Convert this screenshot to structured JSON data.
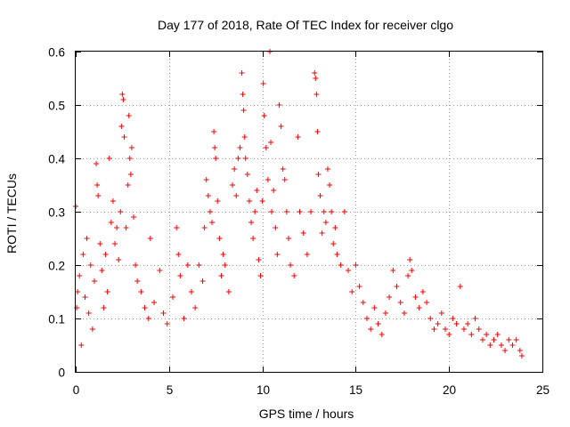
{
  "chart_data": {
    "type": "scatter",
    "title": "Day 177 of 2018, Rate Of TEC Index for receiver clgo",
    "xlabel": "GPS time / hours",
    "ylabel": "ROTI / TECUs",
    "xlim": [
      0,
      25
    ],
    "ylim": [
      0,
      0.6
    ],
    "xticks": [
      0,
      5,
      10,
      15,
      20,
      25
    ],
    "yticks": [
      0,
      0.1,
      0.2,
      0.3,
      0.4,
      0.5,
      0.6
    ],
    "xtick_labels": [
      "0",
      "5",
      "10",
      "15",
      "20",
      "25"
    ],
    "ytick_labels": [
      "0",
      "0.1",
      "0.2",
      "0.3",
      "0.4",
      "0.5",
      "0.6"
    ],
    "grid": true,
    "marker": "plus",
    "marker_color": "#ff0000",
    "series": [
      {
        "name": "ROTI",
        "notes": "dense point cloud, ~1 point per 5 min per satellite; values sampled from the visual envelope",
        "points": [
          [
            0.0,
            0.31
          ],
          [
            0.05,
            0.12
          ],
          [
            0.1,
            0.15
          ],
          [
            0.2,
            0.18
          ],
          [
            0.3,
            0.05
          ],
          [
            0.4,
            0.22
          ],
          [
            0.5,
            0.14
          ],
          [
            0.6,
            0.25
          ],
          [
            0.7,
            0.11
          ],
          [
            0.8,
            0.2
          ],
          [
            0.9,
            0.08
          ],
          [
            1.0,
            0.17
          ],
          [
            1.1,
            0.39
          ],
          [
            1.15,
            0.35
          ],
          [
            1.2,
            0.33
          ],
          [
            1.3,
            0.24
          ],
          [
            1.4,
            0.19
          ],
          [
            1.5,
            0.12
          ],
          [
            1.6,
            0.22
          ],
          [
            1.7,
            0.15
          ],
          [
            1.8,
            0.4
          ],
          [
            1.9,
            0.28
          ],
          [
            2.0,
            0.32
          ],
          [
            2.1,
            0.24
          ],
          [
            2.2,
            0.27
          ],
          [
            2.3,
            0.21
          ],
          [
            2.4,
            0.3
          ],
          [
            2.45,
            0.46
          ],
          [
            2.5,
            0.52
          ],
          [
            2.55,
            0.51
          ],
          [
            2.6,
            0.44
          ],
          [
            2.7,
            0.27
          ],
          [
            2.8,
            0.35
          ],
          [
            2.85,
            0.48
          ],
          [
            2.9,
            0.4
          ],
          [
            2.95,
            0.37
          ],
          [
            3.0,
            0.42
          ],
          [
            3.1,
            0.29
          ],
          [
            3.2,
            0.2
          ],
          [
            3.3,
            0.17
          ],
          [
            3.5,
            0.15
          ],
          [
            3.7,
            0.12
          ],
          [
            3.9,
            0.1
          ],
          [
            4.0,
            0.25
          ],
          [
            4.2,
            0.13
          ],
          [
            4.5,
            0.19
          ],
          [
            4.7,
            0.11
          ],
          [
            4.9,
            0.09
          ],
          [
            5.2,
            0.14
          ],
          [
            5.4,
            0.27
          ],
          [
            5.5,
            0.22
          ],
          [
            5.6,
            0.18
          ],
          [
            5.8,
            0.1
          ],
          [
            6.0,
            0.2
          ],
          [
            6.2,
            0.15
          ],
          [
            6.4,
            0.12
          ],
          [
            6.6,
            0.2
          ],
          [
            6.8,
            0.17
          ],
          [
            6.9,
            0.27
          ],
          [
            7.0,
            0.36
          ],
          [
            7.1,
            0.33
          ],
          [
            7.2,
            0.3
          ],
          [
            7.3,
            0.28
          ],
          [
            7.4,
            0.45
          ],
          [
            7.45,
            0.42
          ],
          [
            7.5,
            0.4
          ],
          [
            7.6,
            0.32
          ],
          [
            7.7,
            0.25
          ],
          [
            7.8,
            0.18
          ],
          [
            7.9,
            0.22
          ],
          [
            8.0,
            0.2
          ],
          [
            8.2,
            0.15
          ],
          [
            8.4,
            0.35
          ],
          [
            8.5,
            0.38
          ],
          [
            8.6,
            0.33
          ],
          [
            8.7,
            0.4
          ],
          [
            8.8,
            0.42
          ],
          [
            8.9,
            0.56
          ],
          [
            8.95,
            0.52
          ],
          [
            9.0,
            0.49
          ],
          [
            9.05,
            0.44
          ],
          [
            9.1,
            0.4
          ],
          [
            9.2,
            0.37
          ],
          [
            9.3,
            0.32
          ],
          [
            9.4,
            0.28
          ],
          [
            9.5,
            0.25
          ],
          [
            9.6,
            0.3
          ],
          [
            9.7,
            0.34
          ],
          [
            9.8,
            0.21
          ],
          [
            9.9,
            0.18
          ],
          [
            10.0,
            0.32
          ],
          [
            10.05,
            0.54
          ],
          [
            10.1,
            0.48
          ],
          [
            10.2,
            0.42
          ],
          [
            10.3,
            0.36
          ],
          [
            10.4,
            0.6
          ],
          [
            10.45,
            0.43
          ],
          [
            10.5,
            0.3
          ],
          [
            10.6,
            0.34
          ],
          [
            10.7,
            0.27
          ],
          [
            10.8,
            0.22
          ],
          [
            10.9,
            0.5
          ],
          [
            11.0,
            0.46
          ],
          [
            11.1,
            0.38
          ],
          [
            11.2,
            0.36
          ],
          [
            11.3,
            0.3
          ],
          [
            11.4,
            0.25
          ],
          [
            11.5,
            0.2
          ],
          [
            11.7,
            0.18
          ],
          [
            11.9,
            0.44
          ],
          [
            12.0,
            0.3
          ],
          [
            12.2,
            0.26
          ],
          [
            12.4,
            0.22
          ],
          [
            12.6,
            0.3
          ],
          [
            12.8,
            0.56
          ],
          [
            12.85,
            0.55
          ],
          [
            12.9,
            0.52
          ],
          [
            12.95,
            0.45
          ],
          [
            13.0,
            0.37
          ],
          [
            13.1,
            0.33
          ],
          [
            13.2,
            0.26
          ],
          [
            13.3,
            0.3
          ],
          [
            13.4,
            0.28
          ],
          [
            13.5,
            0.38
          ],
          [
            13.6,
            0.35
          ],
          [
            13.7,
            0.3
          ],
          [
            13.8,
            0.24
          ],
          [
            13.9,
            0.27
          ],
          [
            14.0,
            0.22
          ],
          [
            14.2,
            0.2
          ],
          [
            14.4,
            0.3
          ],
          [
            14.6,
            0.19
          ],
          [
            14.8,
            0.15
          ],
          [
            15.0,
            0.2
          ],
          [
            15.2,
            0.16
          ],
          [
            15.4,
            0.13
          ],
          [
            15.6,
            0.1
          ],
          [
            15.8,
            0.08
          ],
          [
            16.0,
            0.12
          ],
          [
            16.2,
            0.09
          ],
          [
            16.4,
            0.07
          ],
          [
            16.6,
            0.11
          ],
          [
            16.8,
            0.14
          ],
          [
            17.0,
            0.19
          ],
          [
            17.2,
            0.16
          ],
          [
            17.4,
            0.13
          ],
          [
            17.6,
            0.11
          ],
          [
            17.8,
            0.18
          ],
          [
            17.9,
            0.21
          ],
          [
            18.0,
            0.19
          ],
          [
            18.2,
            0.14
          ],
          [
            18.4,
            0.12
          ],
          [
            18.6,
            0.15
          ],
          [
            18.8,
            0.13
          ],
          [
            19.0,
            0.1
          ],
          [
            19.2,
            0.08
          ],
          [
            19.4,
            0.09
          ],
          [
            19.6,
            0.11
          ],
          [
            19.8,
            0.08
          ],
          [
            20.0,
            0.07
          ],
          [
            20.2,
            0.1
          ],
          [
            20.4,
            0.09
          ],
          [
            20.6,
            0.16
          ],
          [
            20.8,
            0.08
          ],
          [
            21.0,
            0.09
          ],
          [
            21.2,
            0.07
          ],
          [
            21.4,
            0.1
          ],
          [
            21.6,
            0.08
          ],
          [
            21.8,
            0.06
          ],
          [
            22.0,
            0.07
          ],
          [
            22.2,
            0.05
          ],
          [
            22.4,
            0.06
          ],
          [
            22.6,
            0.07
          ],
          [
            22.8,
            0.05
          ],
          [
            23.0,
            0.04
          ],
          [
            23.2,
            0.06
          ],
          [
            23.4,
            0.05
          ],
          [
            23.6,
            0.06
          ],
          [
            23.8,
            0.04
          ],
          [
            23.9,
            0.03
          ]
        ]
      }
    ]
  }
}
